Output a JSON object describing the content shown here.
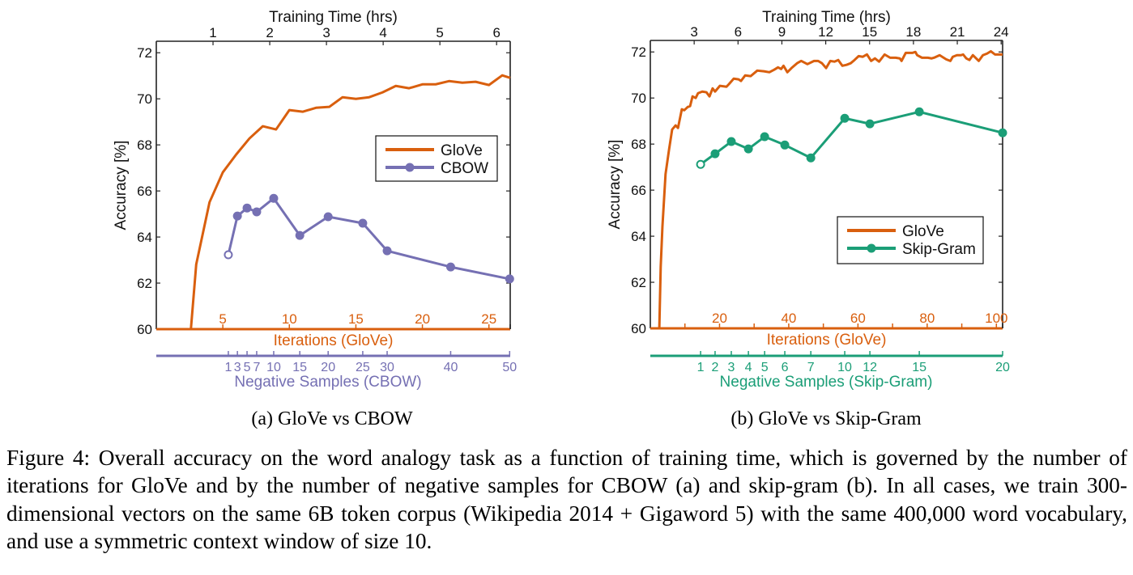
{
  "figure": {
    "caption": "Figure 4: Overall accuracy on the word analogy task as a function of training time, which is governed by the number of iterations for GloVe and by the number of negative samples for CBOW (a) and skip-gram (b).  In all cases, we train 300-dimensional vectors on the same 6B token corpus (Wikipedia 2014 + Gigaword 5) with the same 400,000 word vocabulary, and use a symmetric context window of size 10."
  },
  "colors": {
    "glove": "#d95f0e",
    "cbow": "#7570b3",
    "skipgram": "#1b9e77",
    "axis": "#000000"
  },
  "chart_data": [
    {
      "type": "line",
      "subcaption": "(a)  GloVe vs CBOW",
      "ylabel": "Accuracy [%]",
      "ylim": [
        60,
        72.5
      ],
      "yticks": [
        60,
        62,
        64,
        66,
        68,
        70,
        72
      ],
      "top_axis": {
        "label": "Training Time (hrs)",
        "range": [
          0,
          6.24
        ],
        "ticks": [
          1,
          2,
          3,
          4,
          5,
          6
        ]
      },
      "glove_axis": {
        "label": "Iterations (GloVe)",
        "range": [
          0,
          26.6
        ],
        "ticks": [
          5,
          10,
          15,
          20,
          25
        ]
      },
      "neg_axis": {
        "label": "Negative Samples (CBOW)",
        "ticks": [
          {
            "value": 1,
            "hours": 1.27
          },
          {
            "value": 3,
            "hours": 1.43
          },
          {
            "value": 5,
            "hours": 1.6
          },
          {
            "value": 7,
            "hours": 1.77
          },
          {
            "value": 10,
            "hours": 2.07
          },
          {
            "value": 15,
            "hours": 2.53
          },
          {
            "value": 20,
            "hours": 3.03
          },
          {
            "value": 25,
            "hours": 3.64
          },
          {
            "value": 30,
            "hours": 4.07
          },
          {
            "value": 40,
            "hours": 5.19
          },
          {
            "value": 50,
            "hours": 6.23
          }
        ],
        "tick_labels_text": [
          "1",
          "3",
          "5",
          "7",
          "10",
          "15",
          "20",
          "25",
          "30",
          "40",
          "50"
        ]
      },
      "legend": {
        "position": "center-right",
        "entries": [
          "GloVe",
          "CBOW"
        ]
      },
      "series": [
        {
          "name": "GloVe",
          "x_axis": "iterations",
          "x": [
            2.6,
            3,
            4,
            5,
            6,
            7,
            8,
            9,
            10,
            11,
            12,
            13,
            14,
            15,
            16,
            17,
            18,
            19,
            20,
            21,
            22,
            23,
            24,
            25,
            26,
            26.6
          ],
          "y": [
            60.0,
            62.81,
            65.51,
            66.81,
            67.58,
            68.28,
            68.81,
            68.67,
            69.51,
            69.44,
            69.61,
            69.65,
            70.07,
            70.0,
            70.07,
            70.28,
            70.56,
            70.46,
            70.63,
            70.63,
            70.77,
            70.7,
            70.74,
            70.6,
            71.02,
            70.91
          ]
        },
        {
          "name": "CBOW",
          "x_axis": "negative_samples",
          "x": [
            1,
            3,
            5,
            7,
            10,
            15,
            20,
            25,
            30,
            40,
            50
          ],
          "y": [
            63.23,
            64.91,
            65.26,
            65.09,
            65.68,
            64.07,
            64.88,
            64.6,
            63.4,
            62.7,
            62.18
          ]
        }
      ]
    },
    {
      "type": "line",
      "subcaption": "(b)  GloVe vs Skip-Gram",
      "ylabel": "Accuracy [%]",
      "ylim": [
        60,
        72.5
      ],
      "yticks": [
        60,
        62,
        64,
        66,
        68,
        70,
        72
      ],
      "top_axis": {
        "label": "Training Time (hrs)",
        "range": [
          0,
          24.1
        ],
        "ticks": [
          3,
          6,
          9,
          12,
          15,
          18,
          21,
          24
        ]
      },
      "glove_axis": {
        "label": "Iterations (GloVe)",
        "range": [
          0,
          101.8
        ],
        "ticks": [
          20,
          40,
          60,
          80,
          100
        ],
        "minor_ticks": [
          10,
          30,
          50,
          70,
          90
        ]
      },
      "neg_axis": {
        "label": "Negative Samples (Skip-Gram)",
        "ticks": [
          {
            "value": 1,
            "hours": 3.44
          },
          {
            "value": 2,
            "hours": 4.43
          },
          {
            "value": 3,
            "hours": 5.54
          },
          {
            "value": 4,
            "hours": 6.71
          },
          {
            "value": 5,
            "hours": 7.82
          },
          {
            "value": 6,
            "hours": 9.2
          },
          {
            "value": 7,
            "hours": 10.98
          },
          {
            "value": 10,
            "hours": 13.3
          },
          {
            "value": 12,
            "hours": 15.02
          },
          {
            "value": 15,
            "hours": 18.4
          },
          {
            "value": 20,
            "hours": 24.1
          }
        ],
        "tick_labels_text": [
          "1",
          "2",
          "3",
          "4",
          "5",
          "6",
          "7",
          "10",
          "12",
          "15",
          "20"
        ]
      },
      "legend": {
        "position": "lower-right",
        "entries": [
          "GloVe",
          "Skip-Gram"
        ]
      },
      "series": [
        {
          "name": "GloVe",
          "x_axis": "iterations",
          "x": [
            2.6,
            3.0,
            3.5,
            4.4,
            5.4,
            6.3,
            7.3,
            8.0,
            9.1,
            9.8,
            10.8,
            11.5,
            12.2,
            13.1,
            13.8,
            15.0,
            16.2,
            17.1,
            18.0,
            18.7,
            20.1,
            22.0,
            22.7,
            24.1,
            25.5,
            26.2,
            27.4,
            29.0,
            30.9,
            32.8,
            34.4,
            35.8,
            36.9,
            37.8,
            38.5,
            39.6,
            40.8,
            42.4,
            43.6,
            45.4,
            47.3,
            48.5,
            49.6,
            50.8,
            52.0,
            53.2,
            54.3,
            55.5,
            56.7,
            57.9,
            59.0,
            60.2,
            61.4,
            62.6,
            63.8,
            64.9,
            66.1,
            67.7,
            69.3,
            70.9,
            72.1,
            72.6,
            73.8,
            75.7,
            76.6,
            77.1,
            78.5,
            80.2,
            81.3,
            82.0,
            83.6,
            85.5,
            86.7,
            87.4,
            88.6,
            89.8,
            90.4,
            91.3,
            92.2,
            93.2,
            94.9,
            96.1,
            97.3,
            98.4,
            99.6,
            101.8
          ],
          "y": [
            60.0,
            62.67,
            64.42,
            66.7,
            67.75,
            68.63,
            68.81,
            68.7,
            69.51,
            69.47,
            69.61,
            69.65,
            70.07,
            70.0,
            70.21,
            70.28,
            70.25,
            70.07,
            70.42,
            70.28,
            70.53,
            70.49,
            70.6,
            70.84,
            70.81,
            70.74,
            70.98,
            70.95,
            71.19,
            71.16,
            71.12,
            71.23,
            71.33,
            71.26,
            71.4,
            71.12,
            71.3,
            71.51,
            71.61,
            71.47,
            71.61,
            71.61,
            71.51,
            71.3,
            71.61,
            71.58,
            71.65,
            71.4,
            71.44,
            71.51,
            71.65,
            71.82,
            71.79,
            71.89,
            71.61,
            71.72,
            71.58,
            71.89,
            71.75,
            71.75,
            71.72,
            71.61,
            71.96,
            71.96,
            72.0,
            71.86,
            71.75,
            71.75,
            71.72,
            71.75,
            71.86,
            71.68,
            71.61,
            71.79,
            71.86,
            71.86,
            71.89,
            71.72,
            71.65,
            71.86,
            71.61,
            71.86,
            71.93,
            72.03,
            71.89,
            71.89
          ]
        },
        {
          "name": "Skip-Gram",
          "x_axis": "negative_samples",
          "x": [
            1,
            2,
            3,
            4,
            5,
            6,
            7,
            10,
            12,
            15,
            20
          ],
          "y": [
            67.12,
            67.58,
            68.11,
            67.79,
            68.32,
            67.96,
            67.4,
            69.12,
            68.88,
            69.4,
            68.49
          ]
        }
      ]
    }
  ]
}
